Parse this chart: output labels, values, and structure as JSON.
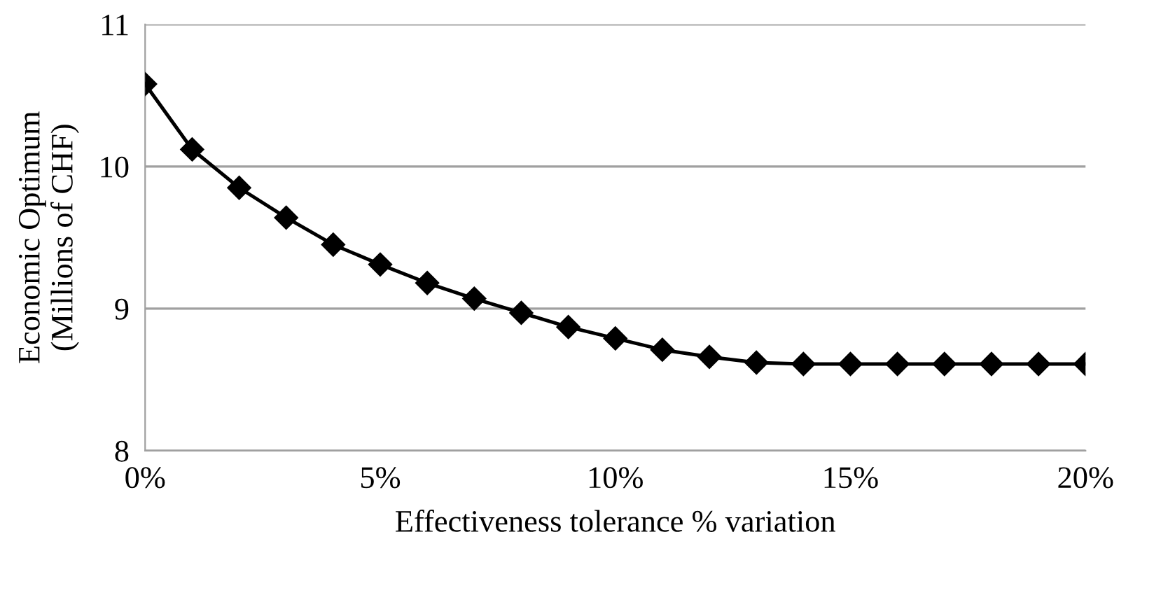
{
  "chart_data": {
    "type": "line",
    "xlabel": "Effectiveness tolerance % variation",
    "ylabel": "Economic Optimum\n(Millions of CHF)",
    "x": [
      0,
      1,
      2,
      3,
      4,
      5,
      6,
      7,
      8,
      9,
      10,
      11,
      12,
      13,
      14,
      15,
      16,
      17,
      18,
      19,
      20
    ],
    "series": [
      {
        "color": "#000000",
        "values": [
          10.58,
          10.12,
          9.85,
          9.64,
          9.45,
          9.31,
          9.18,
          9.07,
          8.97,
          8.87,
          8.79,
          8.71,
          8.66,
          8.62,
          8.61,
          8.61,
          8.61,
          8.61,
          8.61,
          8.61,
          8.61
        ]
      }
    ],
    "xlim": [
      0,
      20
    ],
    "xticks": [
      {
        "value": 0,
        "label": "0%"
      },
      {
        "value": 5,
        "label": "5%"
      },
      {
        "value": 10,
        "label": "10%"
      },
      {
        "value": 15,
        "label": "15%"
      },
      {
        "value": 20,
        "label": "20%"
      }
    ],
    "ylim": [
      8,
      11
    ],
    "yticks": [
      8,
      9,
      10,
      11
    ],
    "grid": "y",
    "marker": "diamond",
    "line_style": "solid"
  }
}
